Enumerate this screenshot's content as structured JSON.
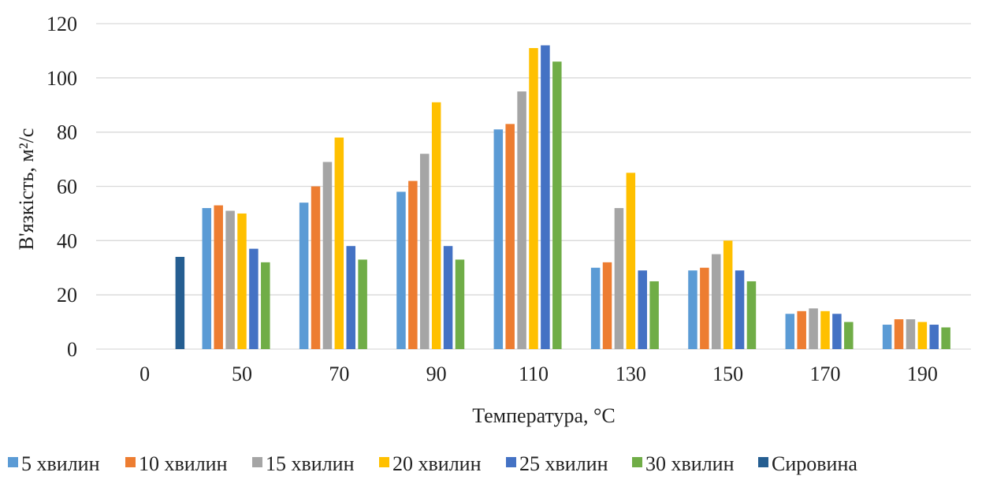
{
  "chart_data": {
    "type": "bar",
    "title": "",
    "xlabel": "Температура, °C",
    "ylabel": "В'язкість, м²/с",
    "categories": [
      "0",
      "50",
      "70",
      "90",
      "110",
      "130",
      "150",
      "170",
      "190"
    ],
    "yticks": [
      "0",
      "20",
      "40",
      "60",
      "80",
      "100",
      "120"
    ],
    "ylim": [
      0,
      120
    ],
    "grid": true,
    "legend_position": "bottom",
    "series": [
      {
        "name": "5 хвилин",
        "color": "#5B9BD5",
        "values": [
          null,
          52,
          54,
          58,
          81,
          30,
          29,
          13,
          9
        ]
      },
      {
        "name": "10 хвилин",
        "color": "#ED7D31",
        "values": [
          null,
          53,
          60,
          62,
          83,
          32,
          30,
          14,
          11
        ]
      },
      {
        "name": "15 хвилин",
        "color": "#A5A5A5",
        "values": [
          null,
          51,
          69,
          72,
          95,
          52,
          35,
          15,
          11
        ]
      },
      {
        "name": "20 хвилин",
        "color": "#FFC000",
        "values": [
          null,
          50,
          78,
          91,
          111,
          65,
          40,
          14,
          10
        ]
      },
      {
        "name": "25 хвилин",
        "color": "#4472C4",
        "values": [
          null,
          37,
          38,
          38,
          112,
          29,
          29,
          13,
          9
        ]
      },
      {
        "name": "30 хвилин",
        "color": "#70AD47",
        "values": [
          null,
          32,
          33,
          33,
          106,
          25,
          25,
          10,
          8
        ]
      },
      {
        "name": "Сировина",
        "color": "#255E91",
        "values": [
          34,
          null,
          null,
          null,
          null,
          null,
          null,
          null,
          null
        ]
      }
    ]
  }
}
